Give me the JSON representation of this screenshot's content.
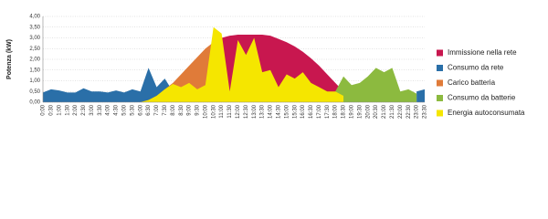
{
  "chart_data": {
    "type": "area",
    "ylabel": "Potenza (kW)",
    "categories": [
      "0:00",
      "0:30",
      "1:00",
      "1:30",
      "2:00",
      "2:30",
      "3:00",
      "3:30",
      "4:00",
      "4:30",
      "5:00",
      "5:30",
      "6:00",
      "6:30",
      "7:00",
      "7:30",
      "8:00",
      "8:30",
      "9:00",
      "9:30",
      "10:00",
      "10:30",
      "11:00",
      "11:30",
      "12:00",
      "12:30",
      "13:00",
      "13:30",
      "14:00",
      "14:30",
      "15:00",
      "15:30",
      "16:00",
      "16:30",
      "17:00",
      "17:30",
      "18:00",
      "18:30",
      "19:00",
      "19:30",
      "20:00",
      "20:30",
      "21:00",
      "21:30",
      "22:00",
      "22:30",
      "23:00",
      "23:30"
    ],
    "ylim": [
      0,
      4
    ],
    "yticks": [
      {
        "value": 0,
        "label": "0,00"
      },
      {
        "value": 0.5,
        "label": "0,50"
      },
      {
        "value": 1,
        "label": "1,00"
      },
      {
        "value": 1.5,
        "label": "1,50"
      },
      {
        "value": 2,
        "label": "2,00"
      },
      {
        "value": 2.5,
        "label": "2,50"
      },
      {
        "value": 3,
        "label": "3,00"
      },
      {
        "value": 3.5,
        "label": "3,50"
      },
      {
        "value": 4,
        "label": "4,00"
      }
    ],
    "grid": true,
    "legend": "right",
    "series": [
      {
        "name": "Immissione nella rete",
        "color": "#c8174f",
        "values": [
          null,
          null,
          null,
          null,
          null,
          null,
          null,
          null,
          null,
          null,
          null,
          null,
          null,
          null,
          null,
          null,
          null,
          null,
          null,
          null,
          null,
          2.8,
          3.0,
          3.1,
          3.15,
          3.15,
          3.15,
          3.15,
          3.1,
          2.95,
          2.8,
          2.6,
          2.35,
          2.05,
          1.7,
          1.3,
          0.9,
          0.5,
          null,
          null,
          null,
          null,
          null,
          null,
          null,
          null,
          null,
          null
        ]
      },
      {
        "name": "Consumo da rete",
        "color": "#2a6fa8",
        "values": [
          0.45,
          0.6,
          0.55,
          0.45,
          0.45,
          0.65,
          0.5,
          0.5,
          0.45,
          0.55,
          0.45,
          0.6,
          0.5,
          1.6,
          0.7,
          1.1,
          0.5,
          null,
          null,
          null,
          null,
          null,
          null,
          null,
          null,
          null,
          null,
          null,
          null,
          null,
          null,
          null,
          null,
          null,
          null,
          null,
          null,
          null,
          null,
          null,
          null,
          null,
          null,
          null,
          null,
          null,
          0.5,
          0.6
        ]
      },
      {
        "name": "Carico batteria",
        "color": "#e07b39",
        "values": [
          null,
          null,
          null,
          null,
          null,
          null,
          null,
          null,
          null,
          null,
          null,
          null,
          0,
          0.1,
          0.3,
          0.6,
          0.9,
          1.3,
          1.7,
          2.1,
          2.5,
          2.8,
          3.0,
          null,
          null,
          null,
          null,
          null,
          null,
          null,
          null,
          null,
          null,
          null,
          null,
          null,
          null,
          null,
          null,
          null,
          null,
          null,
          null,
          null,
          null,
          null,
          null,
          null
        ]
      },
      {
        "name": "Consumo da batterie",
        "color": "#8cba3f",
        "values": [
          null,
          null,
          null,
          null,
          null,
          null,
          null,
          null,
          null,
          null,
          null,
          null,
          null,
          null,
          null,
          null,
          null,
          null,
          null,
          null,
          null,
          null,
          null,
          null,
          null,
          null,
          null,
          null,
          null,
          null,
          null,
          null,
          null,
          null,
          null,
          null,
          0.5,
          1.2,
          0.8,
          0.9,
          1.2,
          1.6,
          1.4,
          1.6,
          0.5,
          0.6,
          0.4,
          null
        ]
      },
      {
        "name": "Energia autoconsumata",
        "color": "#f5e600",
        "values": [
          null,
          null,
          null,
          null,
          null,
          null,
          null,
          null,
          null,
          null,
          null,
          null,
          0,
          0.1,
          0.3,
          0.6,
          0.85,
          0.7,
          0.9,
          0.6,
          0.8,
          3.5,
          3.2,
          0.5,
          2.9,
          2.2,
          3.0,
          1.4,
          1.5,
          0.7,
          1.3,
          1.1,
          1.4,
          0.9,
          0.7,
          0.5,
          0.5,
          0.3,
          null,
          null,
          null,
          null,
          null,
          null,
          null,
          null,
          null,
          null
        ]
      }
    ]
  }
}
